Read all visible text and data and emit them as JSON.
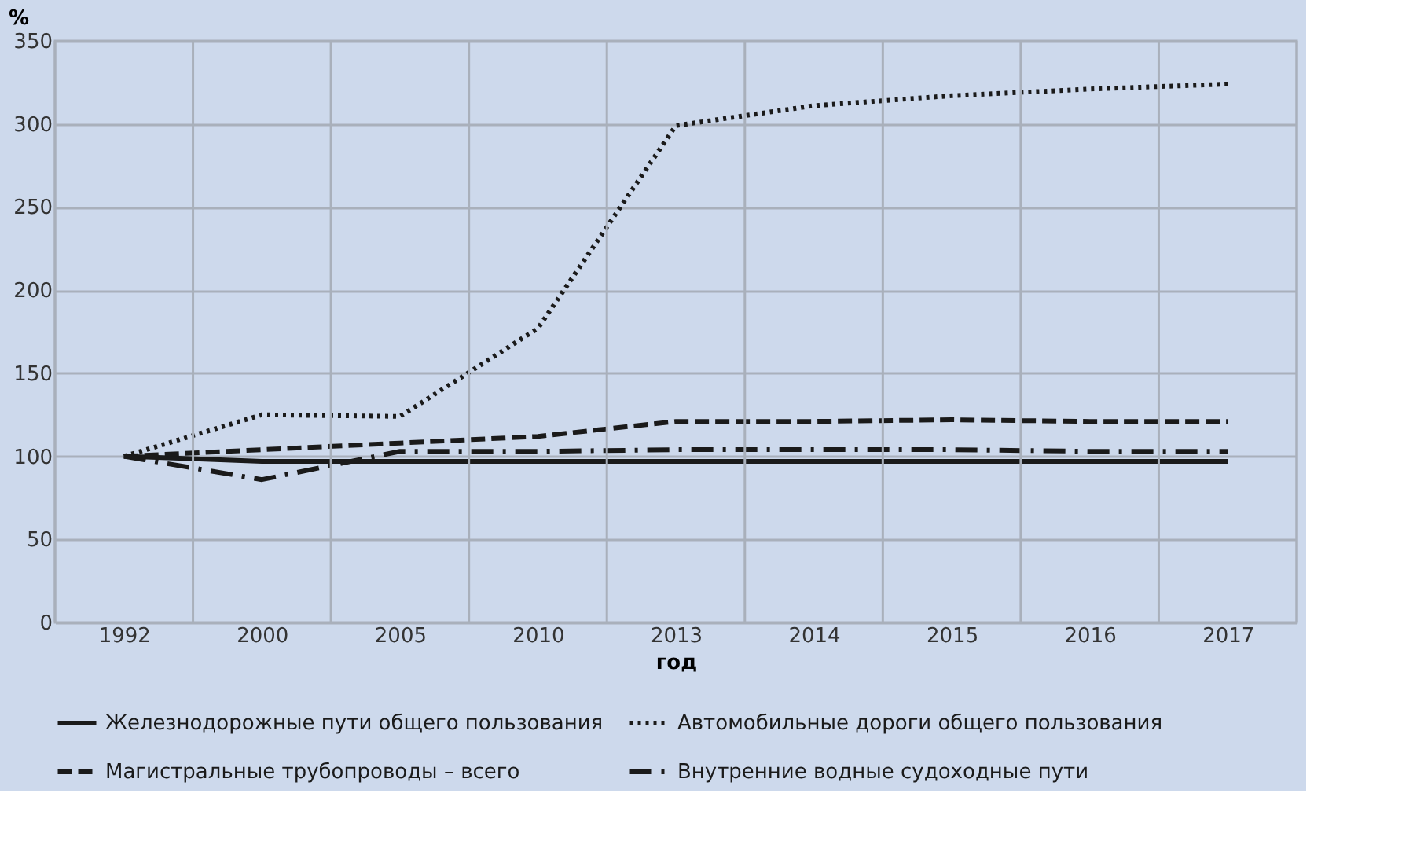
{
  "chart_data": {
    "type": "line",
    "xlabel": "год",
    "ylabel": "%",
    "categories": [
      "1992",
      "2000",
      "2005",
      "2010",
      "2013",
      "2014",
      "2015",
      "2016",
      "2017"
    ],
    "ylim": [
      0,
      350
    ],
    "yticks": [
      0,
      50,
      100,
      150,
      200,
      250,
      300,
      350
    ],
    "grid": true,
    "legend": "bottom",
    "series": [
      {
        "name": "Железнодорожные пути общего пользования",
        "color": "#1a1a1a",
        "line_style": "solid",
        "values": [
          100,
          97,
          97,
          97,
          97,
          97,
          97,
          97,
          97
        ]
      },
      {
        "name": "Автомобильные дороги общего пользования",
        "color": "#1a1a1a",
        "line_style": "dotted",
        "values": [
          100,
          125,
          124,
          177,
          299,
          311,
          317,
          321,
          324
        ]
      },
      {
        "name": "Магистральные трубопроводы – всего",
        "color": "#1a1a1a",
        "line_style": "dashed",
        "values": [
          100,
          104,
          108,
          112,
          121,
          121,
          122,
          121,
          121
        ]
      },
      {
        "name": "Внутренние водные судоходные пути",
        "color": "#1a1a1a",
        "line_style": "dashdot",
        "values": [
          100,
          86,
          103,
          103,
          104,
          104,
          104,
          103,
          103
        ]
      }
    ]
  }
}
